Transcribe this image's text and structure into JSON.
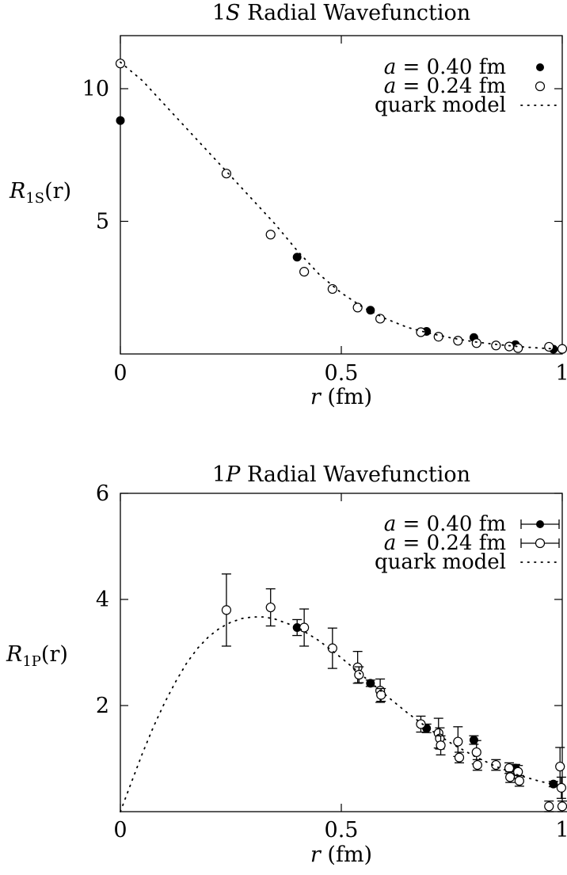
{
  "chart_data": [
    {
      "type": "scatter",
      "title": "1S Radial Wavefunction",
      "title_parts": [
        "1",
        "S",
        " Radial Wavefunction"
      ],
      "xlabel_parts": [
        "r",
        " (fm)"
      ],
      "ylabel_parts": [
        "R",
        "1S",
        "(r)"
      ],
      "xlim": [
        0,
        1
      ],
      "ylim": [
        0,
        12
      ],
      "x_ticks": [
        0,
        0.5,
        1
      ],
      "x_tick_labels": [
        "0",
        "0.5",
        "1"
      ],
      "y_ticks": [
        5,
        10
      ],
      "y_tick_labels": [
        "5",
        "10"
      ],
      "grid": false,
      "legend_position": "top-right",
      "series": [
        {
          "name": "a = 0.40 fm",
          "legend_parts": [
            "a",
            " = 0.40 fm"
          ],
          "marker": "filled-circle",
          "errorbars": false,
          "points": [
            [
              0.0,
              8.8
            ],
            [
              0.4,
              3.65
            ],
            [
              0.566,
              1.65
            ],
            [
              0.693,
              0.85
            ],
            [
              0.8,
              0.62
            ],
            [
              0.894,
              0.35
            ],
            [
              0.98,
              0.18
            ]
          ]
        },
        {
          "name": "a = 0.24 fm",
          "legend_parts": [
            "a",
            " = 0.24 fm"
          ],
          "marker": "open-circle",
          "errorbars": false,
          "points": [
            [
              0.0,
              10.95
            ],
            [
              0.24,
              6.8
            ],
            [
              0.34,
              4.5
            ],
            [
              0.416,
              3.1
            ],
            [
              0.48,
              2.45
            ],
            [
              0.537,
              1.75
            ],
            [
              0.588,
              1.33
            ],
            [
              0.68,
              0.82
            ],
            [
              0.72,
              0.65
            ],
            [
              0.764,
              0.5
            ],
            [
              0.806,
              0.41
            ],
            [
              0.85,
              0.32
            ],
            [
              0.88,
              0.28
            ],
            [
              0.9,
              0.22
            ],
            [
              0.97,
              0.27
            ],
            [
              1.0,
              0.19
            ]
          ]
        },
        {
          "name": "quark model",
          "legend_parts": [
            "quark model"
          ],
          "marker": "dotted-line",
          "curve": [
            [
              0.0,
              11.0
            ],
            [
              0.05,
              10.3
            ],
            [
              0.1,
              9.4
            ],
            [
              0.15,
              8.5
            ],
            [
              0.2,
              7.6
            ],
            [
              0.25,
              6.7
            ],
            [
              0.3,
              5.8
            ],
            [
              0.35,
              4.9
            ],
            [
              0.4,
              3.9
            ],
            [
              0.45,
              3.0
            ],
            [
              0.5,
              2.3
            ],
            [
              0.55,
              1.75
            ],
            [
              0.6,
              1.33
            ],
            [
              0.65,
              1.0
            ],
            [
              0.7,
              0.78
            ],
            [
              0.75,
              0.6
            ],
            [
              0.8,
              0.46
            ],
            [
              0.85,
              0.36
            ],
            [
              0.9,
              0.28
            ],
            [
              0.95,
              0.22
            ],
            [
              1.0,
              0.18
            ]
          ]
        }
      ]
    },
    {
      "type": "scatter",
      "title": "1P Radial Wavefunction",
      "title_parts": [
        "1",
        "P",
        " Radial Wavefunction"
      ],
      "xlabel_parts": [
        "r",
        " (fm)"
      ],
      "ylabel_parts": [
        "R",
        "1P",
        "(r)"
      ],
      "xlim": [
        0,
        1
      ],
      "ylim": [
        0,
        6
      ],
      "x_ticks": [
        0,
        0.5,
        1
      ],
      "x_tick_labels": [
        "0",
        "0.5",
        "1"
      ],
      "y_ticks": [
        2,
        4,
        6
      ],
      "y_tick_labels": [
        "2",
        "4",
        "6"
      ],
      "grid": false,
      "legend_position": "top-right",
      "series": [
        {
          "name": "a = 0.40 fm",
          "legend_parts": [
            "a",
            " = 0.40 fm"
          ],
          "marker": "filled-circle",
          "errorbars": true,
          "points": [
            [
              0.4,
              3.47,
              0.15
            ],
            [
              0.566,
              2.42,
              0.06
            ],
            [
              0.693,
              1.57,
              0.08
            ],
            [
              0.8,
              1.35,
              0.08
            ],
            [
              0.894,
              0.82,
              0.07
            ],
            [
              0.98,
              0.52,
              0.05
            ]
          ]
        },
        {
          "name": "a = 0.24 fm",
          "legend_parts": [
            "a",
            " = 0.24 fm"
          ],
          "marker": "open-circle",
          "errorbars": true,
          "points": [
            [
              0.24,
              3.8,
              0.68
            ],
            [
              0.34,
              3.85,
              0.35
            ],
            [
              0.416,
              3.47,
              0.35
            ],
            [
              0.48,
              3.08,
              0.38
            ],
            [
              0.537,
              2.72,
              0.3
            ],
            [
              0.54,
              2.58,
              0.15
            ],
            [
              0.588,
              2.28,
              0.22
            ],
            [
              0.59,
              2.2,
              0.12
            ],
            [
              0.68,
              1.65,
              0.15
            ],
            [
              0.72,
              1.48,
              0.28
            ],
            [
              0.723,
              1.38,
              0.2
            ],
            [
              0.725,
              1.25,
              0.18
            ],
            [
              0.764,
              1.32,
              0.28
            ],
            [
              0.767,
              1.02,
              0.1
            ],
            [
              0.806,
              1.12,
              0.22
            ],
            [
              0.808,
              0.88,
              0.1
            ],
            [
              0.85,
              0.88,
              0.1
            ],
            [
              0.88,
              0.82,
              0.1
            ],
            [
              0.882,
              0.65,
              0.1
            ],
            [
              0.9,
              0.75,
              0.12
            ],
            [
              0.903,
              0.58,
              0.1
            ],
            [
              0.97,
              0.1,
              0.1
            ],
            [
              0.995,
              0.85,
              0.36
            ],
            [
              0.998,
              0.45,
              0.2
            ],
            [
              1.0,
              0.1,
              0.1
            ]
          ]
        },
        {
          "name": "quark model",
          "legend_parts": [
            "quark model"
          ],
          "marker": "dotted-line",
          "curve": [
            [
              0.0,
              0.0
            ],
            [
              0.025,
              0.55
            ],
            [
              0.05,
              1.1
            ],
            [
              0.075,
              1.6
            ],
            [
              0.1,
              2.05
            ],
            [
              0.125,
              2.45
            ],
            [
              0.15,
              2.8
            ],
            [
              0.175,
              3.08
            ],
            [
              0.2,
              3.3
            ],
            [
              0.225,
              3.46
            ],
            [
              0.25,
              3.57
            ],
            [
              0.275,
              3.64
            ],
            [
              0.3,
              3.67
            ],
            [
              0.325,
              3.67
            ],
            [
              0.35,
              3.63
            ],
            [
              0.4,
              3.48
            ],
            [
              0.45,
              3.22
            ],
            [
              0.5,
              2.9
            ],
            [
              0.55,
              2.55
            ],
            [
              0.6,
              2.2
            ],
            [
              0.65,
              1.86
            ],
            [
              0.7,
              1.55
            ],
            [
              0.75,
              1.28
            ],
            [
              0.8,
              1.05
            ],
            [
              0.85,
              0.85
            ],
            [
              0.9,
              0.69
            ],
            [
              0.95,
              0.57
            ],
            [
              1.0,
              0.48
            ]
          ]
        }
      ]
    }
  ]
}
